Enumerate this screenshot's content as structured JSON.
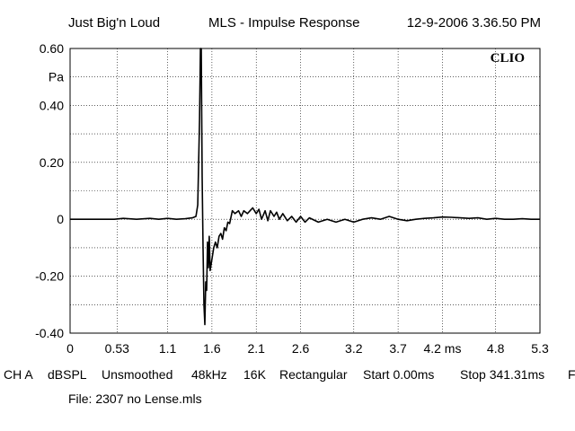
{
  "header": {
    "project": "Just Big'n Loud",
    "measurement": "MLS - Impulse Response",
    "datetime": "12-9-2006 3.36.50 PM"
  },
  "brand": "CLIO",
  "chart_data": {
    "type": "line",
    "title": "MLS - Impulse Response",
    "xlabel": "",
    "ylabel": "Pa",
    "xunit": "ms",
    "xlim": [
      0,
      5.3
    ],
    "ylim": [
      -0.4,
      0.6
    ],
    "x_ticks": [
      0,
      0.53,
      1.1,
      1.6,
      2.1,
      2.6,
      3.2,
      3.7,
      4.2,
      4.8,
      5.3
    ],
    "x_tick_labels": [
      "0",
      "0.53",
      "1.1",
      "1.6",
      "2.1",
      "2.6",
      "3.2",
      "3.7",
      "4.2 ms",
      "4.8",
      "5.3"
    ],
    "y_ticks": [
      0.6,
      0.5,
      0.4,
      0.3,
      0.2,
      0.1,
      0,
      -0.1,
      -0.2,
      -0.3,
      -0.4
    ],
    "y_tick_labels": [
      "0.60",
      "Pa",
      "0.40",
      "",
      "0.20",
      "",
      "0",
      "",
      "-0.20",
      "",
      "-0.40"
    ],
    "grid": true,
    "series": [
      {
        "x": [
          0,
          0.25,
          0.5,
          0.6,
          0.75,
          0.9,
          1.0,
          1.1,
          1.2,
          1.3,
          1.38,
          1.42,
          1.44,
          1.46,
          1.47,
          1.48,
          1.49,
          1.5,
          1.51,
          1.52,
          1.53,
          1.54,
          1.55,
          1.56,
          1.57,
          1.58,
          1.6,
          1.62,
          1.64,
          1.66,
          1.68,
          1.7,
          1.72,
          1.74,
          1.76,
          1.78,
          1.8,
          1.83,
          1.86,
          1.9,
          1.93,
          1.96,
          2.0,
          2.03,
          2.06,
          2.1,
          2.13,
          2.16,
          2.2,
          2.23,
          2.26,
          2.3,
          2.33,
          2.36,
          2.4,
          2.45,
          2.5,
          2.55,
          2.6,
          2.65,
          2.7,
          2.8,
          2.9,
          3.0,
          3.1,
          3.2,
          3.3,
          3.4,
          3.5,
          3.6,
          3.7,
          3.8,
          3.9,
          4.0,
          4.1,
          4.2,
          4.3,
          4.4,
          4.5,
          4.6,
          4.7,
          4.8,
          4.9,
          5.0,
          5.1,
          5.2,
          5.3
        ],
        "y": [
          0,
          0,
          0,
          0.003,
          0,
          0.003,
          0,
          0.003,
          0,
          0.002,
          0.005,
          0.01,
          0.05,
          0.35,
          0.6,
          0.6,
          0.15,
          -0.1,
          -0.3,
          -0.37,
          -0.22,
          -0.25,
          -0.08,
          -0.17,
          -0.06,
          -0.18,
          -0.14,
          -0.1,
          -0.08,
          -0.1,
          -0.06,
          -0.05,
          -0.07,
          -0.03,
          -0.04,
          -0.01,
          -0.015,
          0.03,
          0.02,
          0.03,
          0.01,
          0.03,
          0.02,
          0.03,
          0.04,
          0.02,
          0.035,
          0.0,
          0.03,
          -0.005,
          0.03,
          0.01,
          0.025,
          0.0,
          0.02,
          -0.005,
          0.01,
          -0.01,
          0.01,
          -0.01,
          0.005,
          -0.01,
          0.0,
          -0.01,
          0.0,
          -0.01,
          0.0,
          0.005,
          0.0,
          0.01,
          0.0,
          -0.005,
          0.0,
          0.003,
          0.005,
          0.008,
          0.007,
          0.005,
          0.003,
          0.005,
          0.0,
          0.003,
          0.0,
          0.0,
          0.002,
          0.0,
          0.0
        ]
      }
    ]
  },
  "status_bar": {
    "channel": "CH A",
    "scale": "dBSPL",
    "smoothing": "Unsmoothed",
    "sample_rate": "48kHz",
    "size": "16K",
    "window": "Rectangular",
    "start": "Start 0.00ms",
    "stop": "Stop 341.31ms",
    "overflow": "F"
  },
  "file": "File: 2307 no Lense.mls"
}
